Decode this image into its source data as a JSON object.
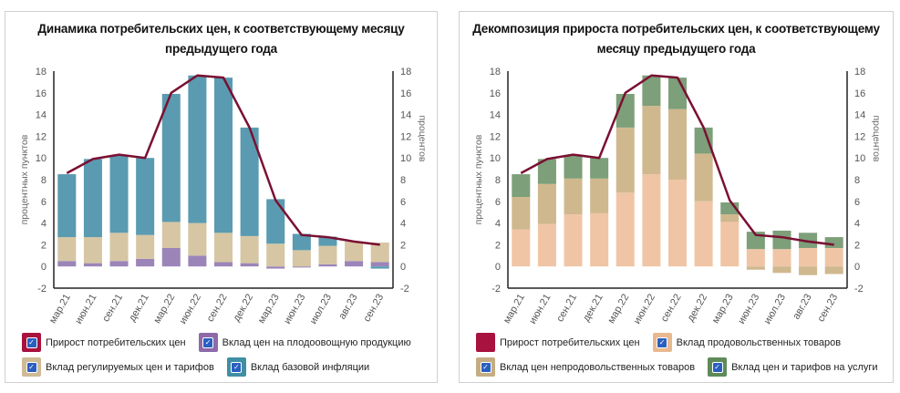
{
  "chart_data": [
    {
      "type": "bar",
      "stacked": true,
      "title": "Динамика потребительских цен, к соответствующему месяцу предыдущего года",
      "ylabel": "процентных пунктов",
      "y2label": "процентов",
      "ylim": [
        -2,
        18
      ],
      "yticks": [
        -2,
        0,
        2,
        4,
        6,
        8,
        10,
        12,
        14,
        16,
        18
      ],
      "categories": [
        "мар.21",
        "июн.21",
        "сен.21",
        "дек.21",
        "мар.22",
        "июн.22",
        "сен.22",
        "дек.22",
        "мар.23",
        "июн.23",
        "июл.23",
        "авг.23",
        "сен.23"
      ],
      "series": [
        {
          "name": "Вклад цен на плодоовощную продукцию",
          "kind": "bar",
          "color": "#9b85b8",
          "legend_color": "#8e6aa8",
          "checked": true,
          "values": [
            0.5,
            0.3,
            0.5,
            0.7,
            1.7,
            1.0,
            0.4,
            0.3,
            -0.2,
            -0.1,
            0.2,
            0.5,
            0.4
          ]
        },
        {
          "name": "Вклад регулируемых цен и тарифов",
          "kind": "bar",
          "color": "#d6c6a3",
          "legend_color": "#cdbb95",
          "checked": true,
          "values": [
            2.2,
            2.4,
            2.6,
            2.2,
            2.4,
            3.0,
            2.7,
            2.5,
            2.1,
            1.5,
            1.7,
            1.8,
            1.8
          ]
        },
        {
          "name": "Вклад базовой инфляции",
          "kind": "bar",
          "color": "#5a9bb1",
          "legend_color": "#3f8fa3",
          "checked": true,
          "values": [
            5.8,
            7.2,
            7.1,
            7.1,
            11.8,
            13.6,
            14.3,
            10.0,
            4.1,
            1.5,
            0.85,
            0.0,
            -0.2
          ]
        },
        {
          "name": "Прирост потребительских цен",
          "kind": "line",
          "color": "#7a1032",
          "legend_color": "#a8123e",
          "checked": true,
          "values": [
            8.6,
            9.9,
            10.3,
            10.0,
            16.0,
            17.6,
            17.4,
            12.8,
            6.1,
            2.9,
            2.7,
            2.3,
            2.0
          ]
        }
      ],
      "legend_order": [
        3,
        0,
        1,
        2
      ]
    },
    {
      "type": "bar",
      "stacked": true,
      "title": "Декомпозиция прироста потребительских цен, к соответствующему месяцу предыдущего года",
      "ylabel": "процентных пунктов",
      "y2label": "процентов",
      "ylim": [
        -2,
        18
      ],
      "yticks": [
        -2,
        0,
        2,
        4,
        6,
        8,
        10,
        12,
        14,
        16,
        18
      ],
      "categories": [
        "мар.21",
        "июн.21",
        "сен.21",
        "дек.21",
        "мар.22",
        "июн.22",
        "сен.22",
        "дек.22",
        "мар.23",
        "июн.23",
        "июл.23",
        "авг.23",
        "сен.23"
      ],
      "series": [
        {
          "name": "Вклад продовольственных товаров",
          "kind": "bar",
          "color": "#f0c5a6",
          "legend_color": "#e8b890",
          "checked": true,
          "values": [
            3.4,
            3.9,
            4.8,
            4.9,
            6.8,
            8.5,
            8.0,
            6.0,
            4.1,
            1.6,
            1.6,
            1.7,
            1.7
          ]
        },
        {
          "name": "Вклад цен непродовольственных товаров",
          "kind": "bar",
          "color": "#d0b88e",
          "legend_color": "#c4ad82",
          "checked": true,
          "values": [
            3.0,
            3.7,
            3.3,
            3.2,
            6.0,
            6.3,
            6.5,
            4.4,
            0.7,
            -0.3,
            -0.6,
            -0.8,
            -0.7
          ]
        },
        {
          "name": "Вклад цен и тарифов на услуги",
          "kind": "bar",
          "color": "#7d9f79",
          "legend_color": "#5e8a5a",
          "checked": true,
          "values": [
            2.1,
            2.3,
            2.1,
            1.9,
            3.1,
            2.8,
            2.9,
            2.4,
            1.1,
            1.6,
            1.7,
            1.4,
            1.0
          ]
        },
        {
          "name": "Прирост потребительских цен",
          "kind": "line",
          "color": "#7a1032",
          "legend_color": "#a8123e",
          "checked": false,
          "values": [
            8.6,
            9.9,
            10.3,
            10.0,
            16.0,
            17.6,
            17.4,
            12.8,
            6.1,
            2.9,
            2.7,
            2.3,
            2.0
          ]
        }
      ],
      "legend_order": [
        3,
        0,
        1,
        2
      ]
    }
  ]
}
